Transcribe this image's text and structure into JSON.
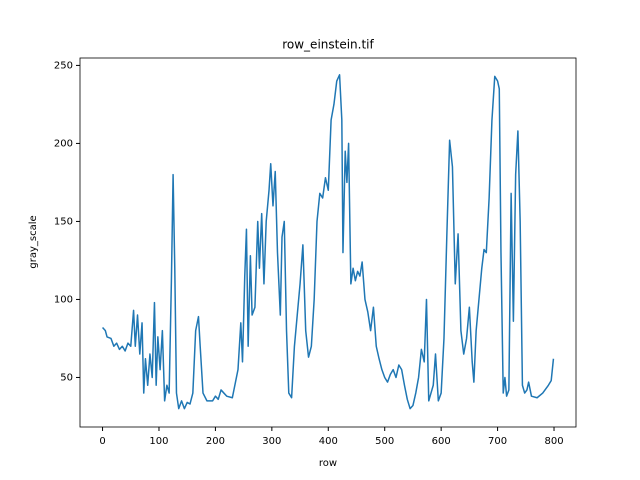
{
  "chart_data": {
    "type": "line",
    "title": "row_einstein.tif",
    "x_label": "row",
    "y_label": "gray_scale",
    "x": [
      0,
      5,
      8,
      15,
      20,
      25,
      30,
      35,
      40,
      45,
      50,
      55,
      58,
      62,
      66,
      70,
      73,
      76,
      80,
      84,
      88,
      92,
      95,
      98,
      102,
      106,
      110,
      114,
      118,
      122,
      125,
      128,
      131,
      135,
      140,
      145,
      150,
      155,
      160,
      165,
      170,
      173,
      178,
      185,
      195,
      200,
      205,
      210,
      215,
      220,
      230,
      240,
      245,
      248,
      252,
      255,
      258,
      262,
      265,
      270,
      275,
      278,
      282,
      286,
      290,
      295,
      298,
      302,
      306,
      310,
      315,
      318,
      322,
      326,
      330,
      335,
      340,
      345,
      350,
      355,
      360,
      365,
      370,
      375,
      380,
      385,
      390,
      395,
      400,
      405,
      410,
      415,
      420,
      424,
      426,
      430,
      433,
      436,
      440,
      444,
      448,
      452,
      456,
      460,
      465,
      470,
      475,
      480,
      485,
      490,
      495,
      500,
      505,
      510,
      515,
      520,
      525,
      530,
      535,
      540,
      545,
      550,
      555,
      560,
      565,
      570,
      574,
      578,
      582,
      586,
      590,
      595,
      600,
      605,
      610,
      615,
      620,
      625,
      630,
      635,
      640,
      645,
      650,
      655,
      658,
      662,
      667,
      672,
      676,
      680,
      685,
      690,
      695,
      700,
      703,
      706,
      710,
      713,
      716,
      720,
      724,
      728,
      732,
      736,
      740,
      744,
      748,
      752,
      755,
      760,
      770,
      780,
      790,
      795,
      799
    ],
    "series": [
      {
        "name": "gray_scale",
        "color": "#1f77b4",
        "values": [
          82,
          80,
          76,
          75,
          70,
          72,
          68,
          70,
          67,
          72,
          70,
          93,
          70,
          90,
          65,
          85,
          40,
          62,
          45,
          65,
          50,
          98,
          45,
          76,
          55,
          80,
          35,
          45,
          40,
          112,
          180,
          120,
          40,
          30,
          35,
          30,
          34,
          33,
          40,
          80,
          89,
          70,
          40,
          35,
          35,
          38,
          36,
          42,
          40,
          38,
          37,
          55,
          85,
          60,
          115,
          145,
          70,
          128,
          90,
          95,
          150,
          120,
          155,
          110,
          150,
          170,
          187,
          160,
          182,
          130,
          90,
          140,
          150,
          80,
          40,
          37,
          70,
          90,
          110,
          135,
          80,
          63,
          70,
          100,
          150,
          168,
          165,
          178,
          170,
          215,
          225,
          240,
          244,
          215,
          130,
          195,
          175,
          200,
          110,
          120,
          112,
          118,
          115,
          124,
          100,
          92,
          80,
          95,
          70,
          62,
          55,
          50,
          47,
          52,
          55,
          50,
          58,
          55,
          45,
          36,
          30,
          32,
          40,
          50,
          68,
          60,
          100,
          35,
          40,
          45,
          65,
          35,
          40,
          75,
          140,
          202,
          185,
          110,
          142,
          80,
          65,
          75,
          95,
          60,
          47,
          80,
          100,
          120,
          132,
          130,
          165,
          215,
          243,
          240,
          235,
          130,
          40,
          50,
          38,
          42,
          168,
          86,
          180,
          208,
          150,
          45,
          40,
          42,
          47,
          38,
          37,
          40,
          45,
          48,
          62
        ]
      }
    ],
    "xlim": [
      -39.95,
      838.95
    ],
    "ylim": [
      18.25,
      254.75
    ],
    "xticks": [
      0,
      100,
      200,
      300,
      400,
      500,
      600,
      700,
      800
    ],
    "yticks": [
      50,
      100,
      150,
      200,
      250
    ],
    "grid": false
  }
}
